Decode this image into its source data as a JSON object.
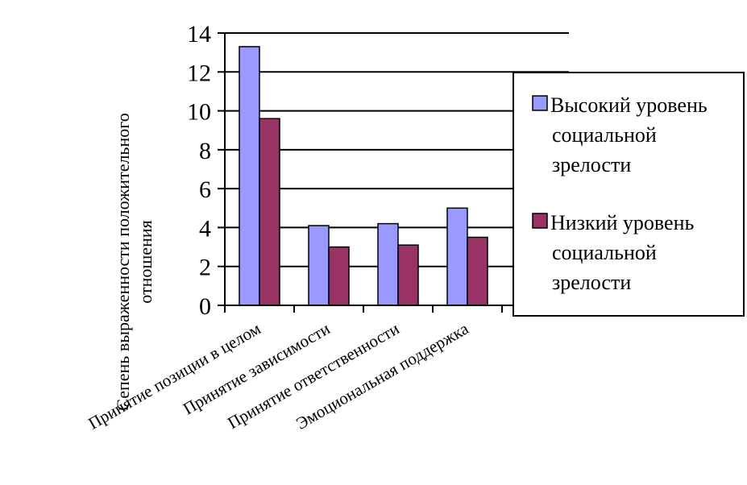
{
  "chart_data": {
    "type": "bar",
    "title": "",
    "xlabel": "",
    "ylabel_lines": [
      "Сепень выраженности положительного",
      "отношения"
    ],
    "categories": [
      "Принятие  позиции в целом",
      "Принятие зависимости",
      "Принятие ответственности",
      "Эмоциональная поддержка"
    ],
    "series": [
      {
        "name_lines": [
          "Высокий уровень",
          "социальной",
          "зрелости"
        ],
        "values": [
          13.3,
          4.1,
          4.2,
          5.0
        ],
        "color": "#9999ff"
      },
      {
        "name_lines": [
          "Низкий уровень",
          "социальной",
          "зрелости"
        ],
        "values": [
          9.6,
          3.0,
          3.1,
          3.5
        ],
        "color": "#993366"
      }
    ],
    "ylim": [
      0,
      14
    ],
    "yticks": [
      "0",
      "2",
      "4",
      "6",
      "8",
      "10",
      "12",
      "14"
    ],
    "grid": true,
    "legend_position": "right"
  }
}
